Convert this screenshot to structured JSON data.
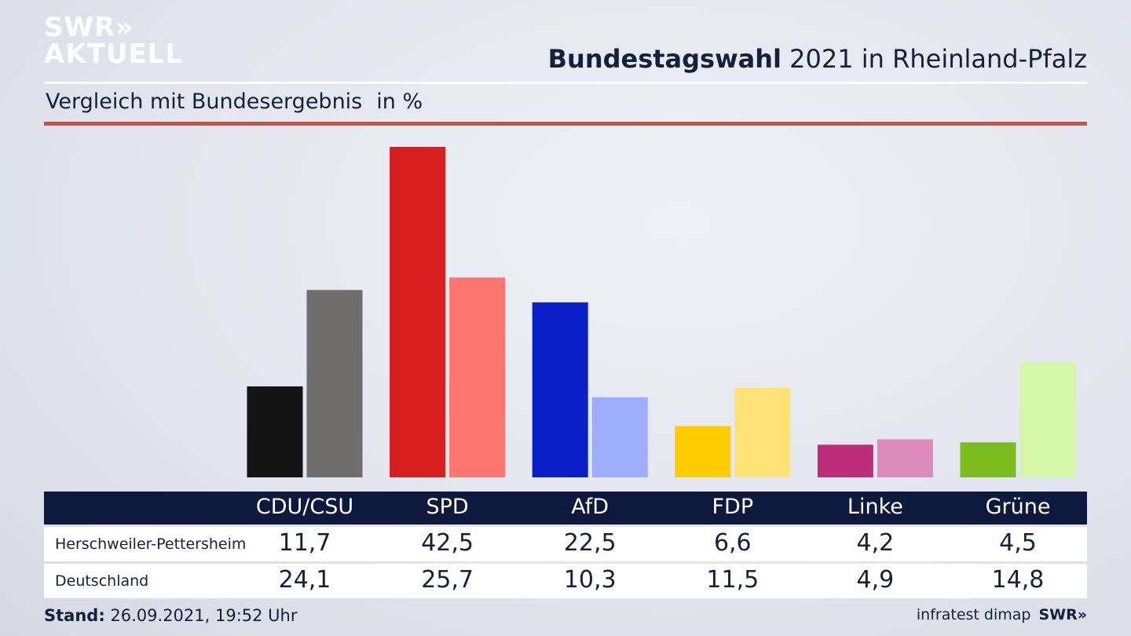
{
  "logo": {
    "line1": "SWR»",
    "line2": "AKTUELL"
  },
  "title": {
    "bold": "Bundestagswahl",
    "rest": " 2021 in Rheinland-Pfalz"
  },
  "subtitle": {
    "text": "Vergleich mit Bundesergebnis",
    "unit": "in %"
  },
  "footer": {
    "stand_label": "Stand:",
    "stand_value": " 26.09.2021, 19:52 Uhr",
    "source": "infratest dimap",
    "brand": "SWR»"
  },
  "colors": {
    "CDU/CSU": [
      "#141414",
      "#706e6c"
    ],
    "SPD": [
      "#d71f1f",
      "#ff7570"
    ],
    "AfD": [
      "#0a20c6",
      "#9fadff"
    ],
    "FDP": [
      "#ffcc00",
      "#ffe377"
    ],
    "Linke": [
      "#be2d79",
      "#df8bba"
    ],
    "Grüne": [
      "#79bc1c",
      "#d5f8a8"
    ]
  },
  "chart_data": {
    "type": "bar",
    "categories": [
      "CDU/CSU",
      "SPD",
      "AfD",
      "FDP",
      "Linke",
      "Grüne"
    ],
    "series": [
      {
        "name": "Herschweiler-Pettersheim",
        "values": [
          11.7,
          42.5,
          22.5,
          6.6,
          4.2,
          4.5
        ]
      },
      {
        "name": "Deutschland",
        "values": [
          24.1,
          25.7,
          10.3,
          11.5,
          4.9,
          14.8
        ]
      }
    ],
    "title": "Bundestagswahl 2021 in Rheinland-Pfalz",
    "subtitle": "Vergleich mit Bundesergebnis",
    "ylabel": "in %",
    "ylim": [
      0,
      42.5
    ],
    "grid": false,
    "legend": "table-below"
  },
  "table": {
    "rows": [
      {
        "label": "Herschweiler-Pettersheim",
        "values": [
          "11,7",
          "42,5",
          "22,5",
          "6,6",
          "4,2",
          "4,5"
        ]
      },
      {
        "label": "Deutschland",
        "values": [
          "24,1",
          "25,7",
          "10,3",
          "11,5",
          "4,9",
          "14,8"
        ]
      }
    ]
  }
}
